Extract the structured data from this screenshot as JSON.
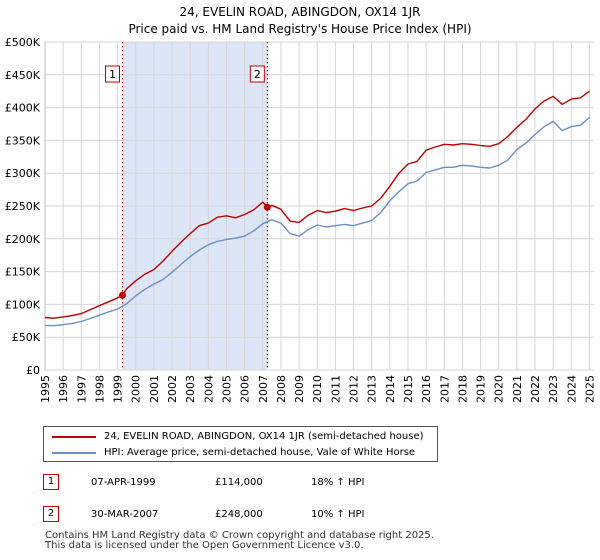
{
  "chart_data": {
    "type": "line",
    "title": "24, EVELIN ROAD, ABINGDON, OX14 1JR",
    "subtitle": "Price paid vs. HM Land Registry's House Price Index (HPI)",
    "xlim": [
      1995,
      2025.25
    ],
    "ylim": [
      0,
      500000
    ],
    "x_ticks": [
      "1995",
      "1996",
      "1997",
      "1998",
      "1999",
      "2000",
      "2001",
      "2002",
      "2003",
      "2004",
      "2005",
      "2006",
      "2007",
      "2008",
      "2009",
      "2010",
      "2011",
      "2012",
      "2013",
      "2014",
      "2015",
      "2016",
      "2017",
      "2018",
      "2019",
      "2020",
      "2021",
      "2022",
      "2023",
      "2024",
      "2025"
    ],
    "y_ticks": [
      {
        "value": 0,
        "label": "£0"
      },
      {
        "value": 50000,
        "label": "£50K"
      },
      {
        "value": 100000,
        "label": "£100K"
      },
      {
        "value": 150000,
        "label": "£150K"
      },
      {
        "value": 200000,
        "label": "£200K"
      },
      {
        "value": 250000,
        "label": "£250K"
      },
      {
        "value": 300000,
        "label": "£300K"
      },
      {
        "value": 350000,
        "label": "£350K"
      },
      {
        "value": 400000,
        "label": "£400K"
      },
      {
        "value": 450000,
        "label": "£450K"
      },
      {
        "value": 500000,
        "label": "£500K"
      }
    ],
    "shaded_region": {
      "from": 1999.27,
      "to": 2007.25,
      "color": "#dce6f7"
    },
    "colors": {
      "price_paid": "#c00000",
      "hpi": "#6a8fc8",
      "grid": "#d6d6d6",
      "background": "#ffffff"
    },
    "series": [
      {
        "name": "24, EVELIN ROAD, ABINGDON, OX14 1JR (semi-detached house)",
        "color": "#c00000",
        "x": [
          1995.0,
          1995.5,
          1996.0,
          1996.5,
          1997.0,
          1997.5,
          1998.0,
          1998.5,
          1999.0,
          1999.27,
          1999.5,
          2000.0,
          2000.5,
          2001.0,
          2001.5,
          2002.0,
          2002.5,
          2003.0,
          2003.5,
          2004.0,
          2004.5,
          2005.0,
          2005.5,
          2006.0,
          2006.5,
          2007.0,
          2007.25,
          2007.5,
          2008.0,
          2008.5,
          2009.0,
          2009.5,
          2010.0,
          2010.5,
          2011.0,
          2011.5,
          2012.0,
          2012.5,
          2013.0,
          2013.5,
          2014.0,
          2014.5,
          2015.0,
          2015.5,
          2016.0,
          2016.5,
          2017.0,
          2017.5,
          2018.0,
          2018.5,
          2019.0,
          2019.5,
          2020.0,
          2020.5,
          2021.0,
          2021.5,
          2022.0,
          2022.5,
          2023.0,
          2023.5,
          2024.0,
          2024.5,
          2025.0
        ],
        "values": [
          80000,
          79000,
          81000,
          83000,
          86000,
          92000,
          98000,
          104000,
          110000,
          114000,
          124000,
          136000,
          146000,
          153000,
          166000,
          181000,
          195000,
          208000,
          220000,
          224000,
          233000,
          235000,
          232000,
          237000,
          244000,
          256000,
          248000,
          251000,
          245000,
          227000,
          225000,
          236000,
          243000,
          240000,
          242000,
          246000,
          243000,
          247000,
          250000,
          262000,
          280000,
          300000,
          314000,
          318000,
          335000,
          340000,
          344000,
          343000,
          345000,
          344000,
          342000,
          341000,
          345000,
          356000,
          370000,
          382000,
          398000,
          410000,
          417000,
          405000,
          413000,
          415000,
          425000
        ]
      },
      {
        "name": "HPI: Average price, semi-detached house, Vale of White Horse",
        "color": "#6a8fc8",
        "x": [
          1995.0,
          1995.5,
          1996.0,
          1996.5,
          1997.0,
          1997.5,
          1998.0,
          1998.5,
          1999.0,
          1999.5,
          2000.0,
          2000.5,
          2001.0,
          2001.5,
          2002.0,
          2002.5,
          2003.0,
          2003.5,
          2004.0,
          2004.5,
          2005.0,
          2005.5,
          2006.0,
          2006.5,
          2007.0,
          2007.5,
          2008.0,
          2008.5,
          2009.0,
          2009.5,
          2010.0,
          2010.5,
          2011.0,
          2011.5,
          2012.0,
          2012.5,
          2013.0,
          2013.5,
          2014.0,
          2014.5,
          2015.0,
          2015.5,
          2016.0,
          2016.5,
          2017.0,
          2017.5,
          2018.0,
          2018.5,
          2019.0,
          2019.5,
          2020.0,
          2020.5,
          2021.0,
          2021.5,
          2022.0,
          2022.5,
          2023.0,
          2023.5,
          2024.0,
          2024.5,
          2025.0
        ],
        "values": [
          68000,
          67500,
          69000,
          71000,
          74000,
          78500,
          83500,
          88500,
          93000,
          101000,
          113000,
          123000,
          131000,
          138000,
          149000,
          161000,
          173000,
          183000,
          191000,
          196000,
          199000,
          201000,
          204000,
          212000,
          223000,
          229000,
          224000,
          208000,
          204000,
          214000,
          221000,
          218000,
          220000,
          222000,
          220000,
          224000,
          228000,
          240000,
          258000,
          272000,
          284000,
          288000,
          301000,
          305000,
          309000,
          309000,
          312000,
          311000,
          309000,
          308000,
          312000,
          320000,
          336000,
          346000,
          359000,
          371000,
          379000,
          365000,
          371000,
          373000,
          385000
        ]
      }
    ],
    "sales": [
      {
        "label": "1",
        "x": 1999.27,
        "value": 114000,
        "date": "07-APR-1999",
        "price": "£114,000",
        "hpi_diff": "18% ↑ HPI"
      },
      {
        "label": "2",
        "x": 2007.25,
        "value": 248000,
        "date": "30-MAR-2007",
        "price": "£248,000",
        "hpi_diff": "10% ↑ HPI"
      }
    ]
  },
  "footer": {
    "line1": "Contains HM Land Registry data © Crown copyright and database right 2025.",
    "line2": "This data is licensed under the Open Government Licence v3.0."
  }
}
